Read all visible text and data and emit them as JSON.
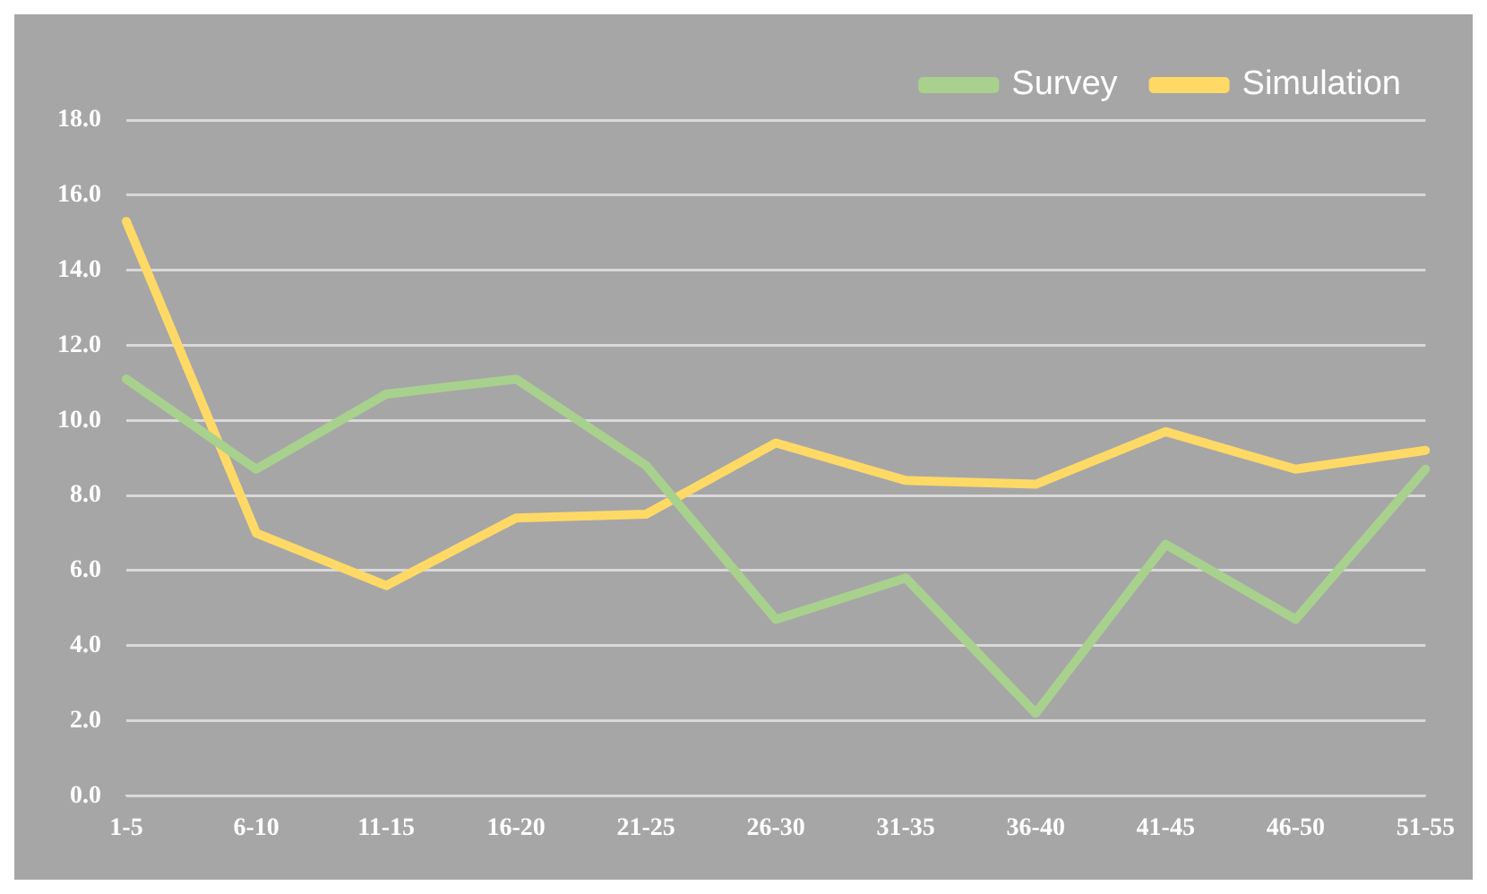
{
  "chart_data": {
    "type": "line",
    "categories": [
      "1-5",
      "6-10",
      "11-15",
      "16-20",
      "21-25",
      "26-30",
      "31-35",
      "36-40",
      "41-45",
      "46-50",
      "51-55"
    ],
    "series": [
      {
        "name": "Survey",
        "color": "#a9d18e",
        "values": [
          11.1,
          8.7,
          10.7,
          11.1,
          8.8,
          4.7,
          5.8,
          2.2,
          6.7,
          4.7,
          8.7
        ]
      },
      {
        "name": "Simulation",
        "color": "#ffd966",
        "values": [
          15.3,
          7.0,
          5.6,
          7.4,
          7.5,
          9.4,
          8.4,
          8.3,
          9.7,
          8.7,
          9.2
        ]
      }
    ],
    "ylim": [
      0,
      18
    ],
    "yticks": [
      {
        "value": 0,
        "label": "0.0"
      },
      {
        "value": 2,
        "label": "2.0"
      },
      {
        "value": 4,
        "label": "4.0"
      },
      {
        "value": 6,
        "label": "6.0"
      },
      {
        "value": 8,
        "label": "8.0"
      },
      {
        "value": 10,
        "label": "10.0"
      },
      {
        "value": 12,
        "label": "12.0"
      },
      {
        "value": 14,
        "label": "14.0"
      },
      {
        "value": 16,
        "label": "16.0"
      },
      {
        "value": 18,
        "label": "18.0"
      }
    ],
    "grid": "y",
    "legend": "top right",
    "marker": "none",
    "line_style": "solid"
  }
}
